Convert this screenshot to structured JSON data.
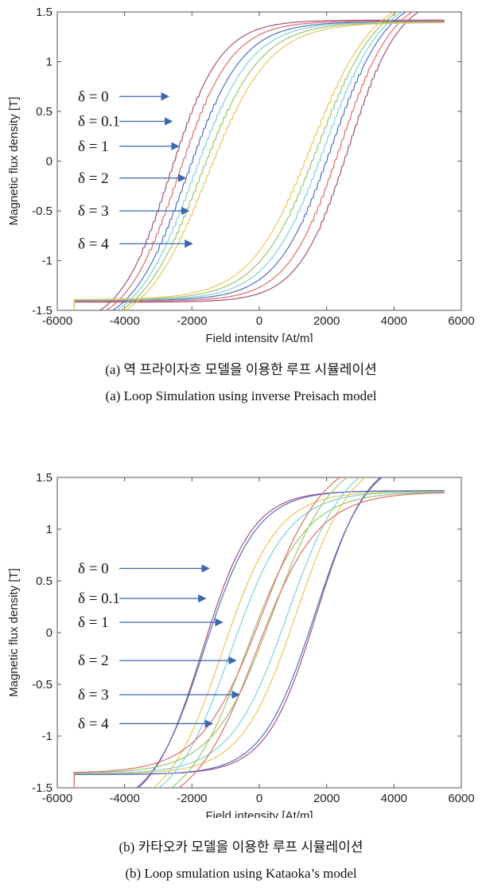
{
  "chart_data": [
    {
      "type": "line",
      "xlabel": "Field intensity [At/m]",
      "ylabel": "Magnetic flux density [T]",
      "xlim": [
        -6000,
        6000
      ],
      "ylim": [
        -1.5,
        1.5
      ],
      "xticks": [
        "-6000",
        "-4000",
        "-2000",
        "0",
        "2000",
        "4000",
        "6000"
      ],
      "yticks": [
        "1.5",
        "1",
        "0.5",
        "0",
        "-0.5",
        "-1",
        "-1.5"
      ],
      "grid": false,
      "tip": [
        5500,
        1.35
      ],
      "annotations": [
        {
          "label": "δ = 0",
          "x": -2700,
          "y": 0.65
        },
        {
          "label": "δ = 0.1",
          "x": -2600,
          "y": 0.4
        },
        {
          "label": "δ = 1",
          "x": -2400,
          "y": 0.15
        },
        {
          "label": "δ = 2",
          "x": -2200,
          "y": -0.17
        },
        {
          "label": "δ = 3",
          "x": -2100,
          "y": -0.5
        },
        {
          "label": "δ = 4",
          "x": -2000,
          "y": -0.83
        }
      ],
      "series": [
        {
          "color": "#a0527a",
          "coercivity": 2650,
          "jagged": true
        },
        {
          "color": "#e06a6a",
          "coercivity": 2400,
          "jagged": true
        },
        {
          "color": "#4f6fc4",
          "coercivity": 2150,
          "jagged": true
        },
        {
          "color": "#7fd0d8",
          "coercivity": 1950,
          "jagged": true
        },
        {
          "color": "#9bc46b",
          "coercivity": 1750,
          "jagged": true
        },
        {
          "color": "#e5c85a",
          "coercivity": 1550,
          "jagged": true
        }
      ],
      "caption_ko": "(a) 역 프라이자흐 모델을 이용한 루프 시뮬레이션",
      "caption_en": "(a) Loop Simulation using inverse Preisach model"
    },
    {
      "type": "line",
      "xlabel": "Field intensity [At/m]",
      "ylabel": "Magnetic flux density [T]",
      "xlim": [
        -6000,
        6000
      ],
      "ylim": [
        -1.5,
        1.5
      ],
      "xticks": [
        "-6000",
        "-4000",
        "-2000",
        "0",
        "2000",
        "4000",
        "6000"
      ],
      "yticks": [
        "1.5",
        "1",
        "0.5",
        "0",
        "-0.5",
        "-1",
        "-1.5"
      ],
      "grid": false,
      "tip": [
        5500,
        1.35
      ],
      "annotations": [
        {
          "label": "δ = 0",
          "x": -1500,
          "y": 0.62
        },
        {
          "label": "δ = 0.1",
          "x": -1600,
          "y": 0.33
        },
        {
          "label": "δ = 1",
          "x": -1100,
          "y": 0.1
        },
        {
          "label": "δ = 2",
          "x": -700,
          "y": -0.27
        },
        {
          "label": "δ = 3",
          "x": -600,
          "y": -0.6
        },
        {
          "label": "δ = 4",
          "x": -1400,
          "y": -0.88
        }
      ],
      "series": [
        {
          "color": "#a0527a",
          "coercivity": 1700,
          "jagged": false
        },
        {
          "color": "#4f6fc4",
          "coercivity": 1650,
          "jagged": false
        },
        {
          "color": "#e5c85a",
          "coercivity": 1100,
          "jagged": false
        },
        {
          "color": "#7fd0d8",
          "coercivity": 850,
          "jagged": false
        },
        {
          "color": "#9bc46b",
          "coercivity": 400,
          "jagged": false
        },
        {
          "color": "#e06a6a",
          "coercivity": 100,
          "jagged": false
        }
      ],
      "caption_ko": "(b) 카타오카 모델을 이용한 루프 시뮬레이션",
      "caption_en": "(b) Loop smulation using Kataoka’s model"
    }
  ]
}
